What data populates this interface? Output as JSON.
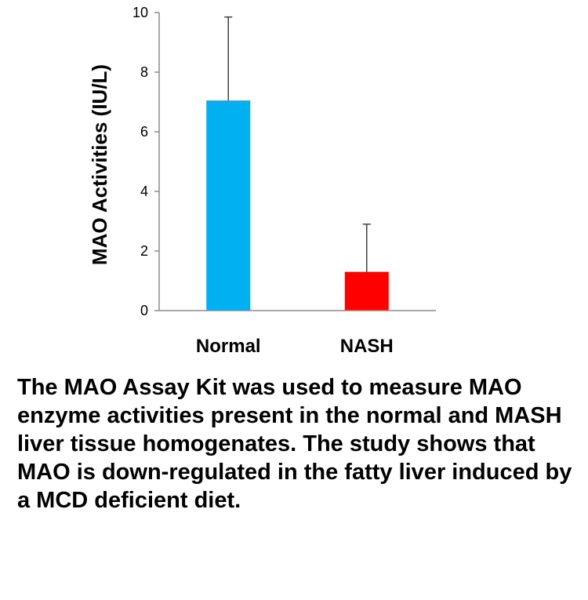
{
  "chart_data": {
    "type": "bar",
    "categories": [
      "Normal",
      "NASH"
    ],
    "values": [
      7.05,
      1.3
    ],
    "error": [
      2.8,
      1.6
    ],
    "colors": [
      "#00b0f0",
      "#ff0000"
    ],
    "title": "",
    "xlabel": "",
    "ylabel": "MAO Activities (IU/L)",
    "ylim": [
      0,
      10
    ],
    "yticks": [
      0,
      2,
      4,
      6,
      8,
      10
    ],
    "grid": false,
    "legend": "none"
  },
  "caption": "The MAO Assay Kit was used to measure MAO enzyme activities present in the normal and MASH liver tissue homogenates. The study shows that MAO is down-regulated in the fatty liver induced by a MCD deficient diet."
}
